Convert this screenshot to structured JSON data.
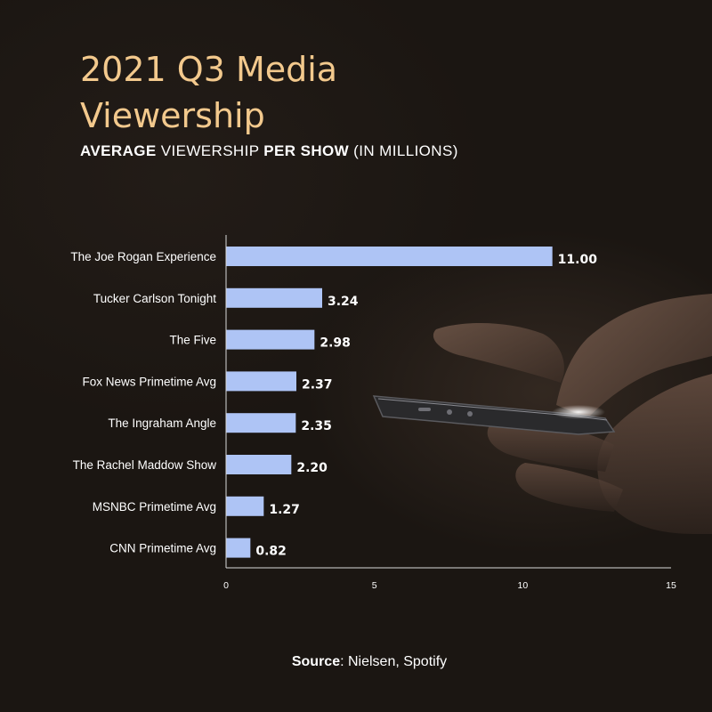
{
  "header": {
    "title": "2021 Q3 Media Viewership",
    "subtitle_parts": [
      "AVERAGE",
      " VIEWERSHIP ",
      "PER SHOW",
      " (IN MILLIONS)"
    ]
  },
  "footer": {
    "source_label": "Source",
    "source_text": ": Nielsen, Spotify"
  },
  "colors": {
    "bar": "#aec4f5",
    "title": "#f3c98d",
    "text": "#ffffff",
    "axis": "#d9d9d9"
  },
  "chart_data": {
    "type": "bar",
    "orientation": "horizontal",
    "title": "2021 Q3 Media Viewership",
    "subtitle": "AVERAGE VIEWERSHIP PER SHOW (IN MILLIONS)",
    "categories": [
      "The Joe Rogan Experience",
      "Tucker Carlson Tonight",
      "The Five",
      "Fox News Primetime Avg",
      "The Ingraham Angle",
      "The Rachel Maddow Show",
      "MSNBC Primetime Avg",
      "CNN Primetime Avg"
    ],
    "values": [
      11.0,
      3.24,
      2.98,
      2.37,
      2.35,
      2.2,
      1.27,
      0.82
    ],
    "value_labels": [
      "11.00",
      "3.24",
      "2.98",
      "2.37",
      "2.35",
      "2.20",
      "1.27",
      "0.82"
    ],
    "xlim": [
      0,
      15
    ],
    "xticks": [
      0,
      5,
      10,
      15
    ],
    "xtick_labels": [
      "0",
      "5",
      "10",
      "15"
    ],
    "grid": false,
    "legend": "none"
  }
}
